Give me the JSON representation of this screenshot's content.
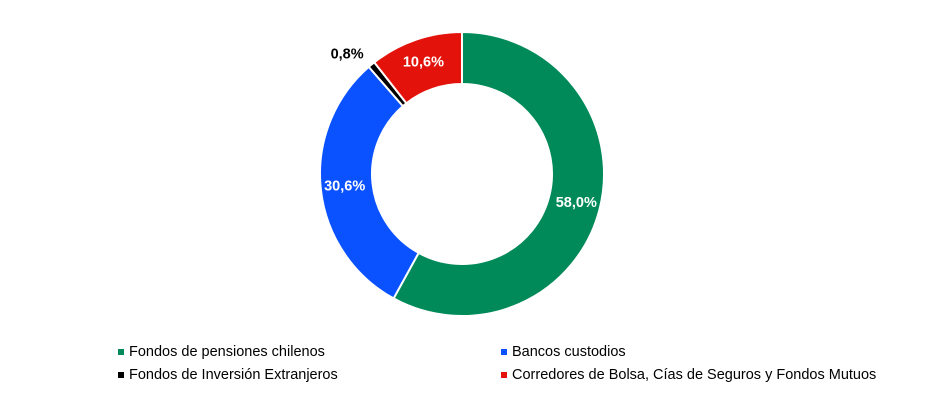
{
  "chart_data": {
    "type": "pie",
    "variant": "donut",
    "title": "",
    "series": [
      {
        "name": "Fondos de pensiones chilenos",
        "value": 58.0,
        "label": "58,0%",
        "color": "#008A5A"
      },
      {
        "name": "Bancos custodios",
        "value": 30.6,
        "label": "30,6%",
        "color": "#0A52FF"
      },
      {
        "name": "Fondos de Inversión Extranjeros",
        "value": 0.8,
        "label": "0,8%",
        "color": "#000000"
      },
      {
        "name": "Corredores de Bolsa, Cías de Seguros y Fondos Mutuos",
        "value": 10.6,
        "label": "10,6%",
        "color": "#E3120B"
      }
    ],
    "legend_position": "bottom",
    "start_angle": "12 o'clock, clockwise"
  },
  "legend": {
    "order": [
      0,
      1,
      2,
      3
    ]
  }
}
